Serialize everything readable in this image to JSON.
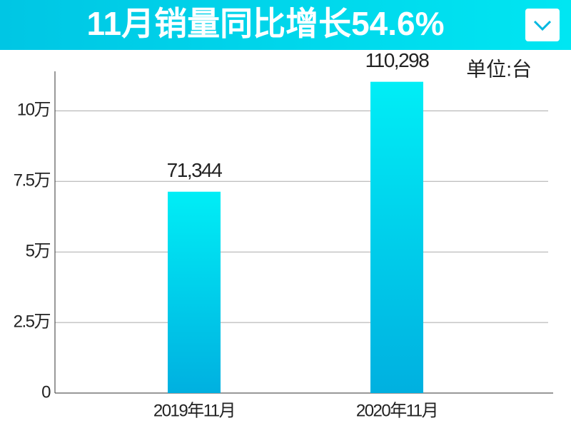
{
  "chart_data": {
    "type": "bar",
    "title": "11月销量同比增长54.6%",
    "unit": "单位:台",
    "categories": [
      "2019年11月",
      "2020年11月"
    ],
    "values": [
      71344,
      110298
    ],
    "value_labels": [
      "71,344",
      "110,298"
    ],
    "colors": [
      "#00eef6",
      "#00b0e0"
    ],
    "ylim": [
      0,
      114000
    ],
    "yticks": [
      0,
      {
        "value": 25000,
        "label": "2.5万"
      },
      {
        "value": 50000,
        "label": "5万"
      },
      {
        "value": 75000,
        "label": "7.5万"
      },
      {
        "value": 100000,
        "label": "10万"
      }
    ],
    "grid": true
  }
}
